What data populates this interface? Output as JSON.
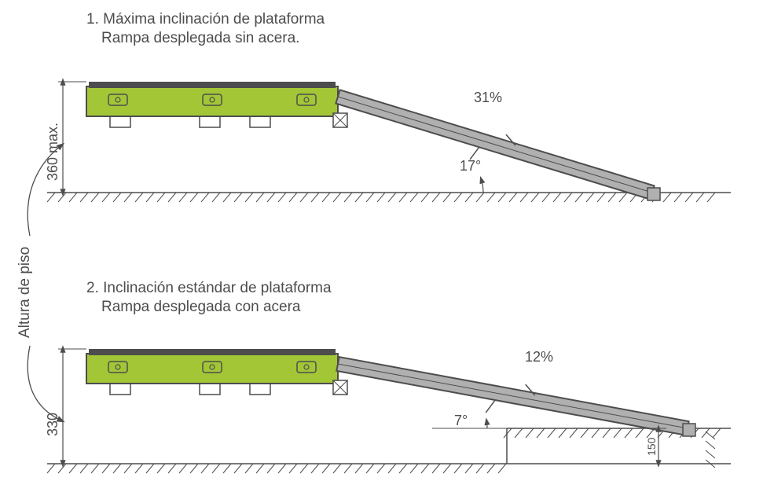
{
  "colors": {
    "text": "#4d4d4d",
    "stroke": "#4d4d4d",
    "platform_fill": "#a3c637",
    "ramp_fill": "#b0b0b0",
    "dark": "#4d4d4d",
    "bg": "#ffffff"
  },
  "labels": {
    "floor_side": "Altura de piso",
    "fig1_title": "1. Máxima inclinación de plataforma",
    "fig1_sub": "Rampa desplegada sin acera.",
    "fig2_title": "2. Inclinación estándar de plataforma",
    "fig2_sub": "Rampa desplegada con acera",
    "dim360": "360 max.",
    "dim330": "330",
    "dim150": "150",
    "pct31": "31%",
    "deg17": "17°",
    "pct12": "12%",
    "deg7": "7°"
  },
  "layout": {
    "fig1": {
      "groundY": 245,
      "platTopY": 110,
      "platLeftX": 110,
      "platW": 320,
      "dimX": 80,
      "rampX1": 430,
      "rampY1": 123,
      "rampX2": 830,
      "rampY2": 245
    },
    "fig2": {
      "groundY": 590,
      "curbTopY": 545,
      "curbLeftX": 645,
      "platTopY": 450,
      "platLeftX": 110,
      "platW": 320,
      "dimX": 80,
      "rampX1": 430,
      "rampY1": 463,
      "rampX2": 875,
      "rampY2": 545
    }
  },
  "geometry": {
    "fig1": {
      "ramp_angle_deg": 17,
      "ramp_slope_pct": 31,
      "height_mm": 360
    },
    "fig2": {
      "ramp_angle_deg": 7,
      "ramp_slope_pct": 12,
      "height_mm": 330,
      "curb_height_mm": 150
    }
  }
}
